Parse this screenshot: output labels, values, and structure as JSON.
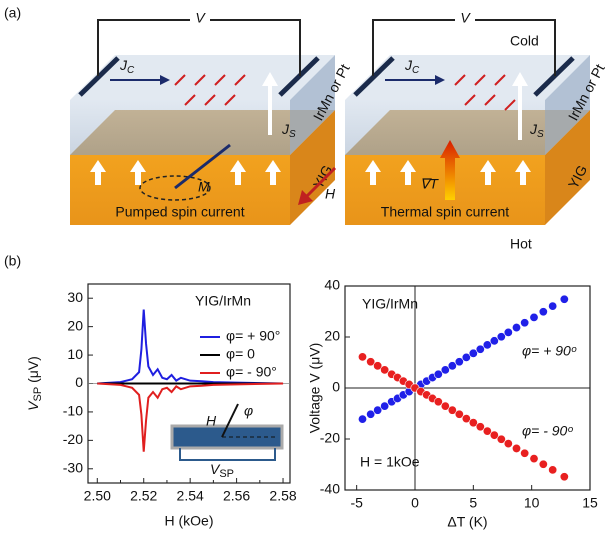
{
  "panel_a": {
    "label": "(a)",
    "left": {
      "voltage": "V",
      "jc_main": "J",
      "jc_sub": "C",
      "js_main": "J",
      "js_sub": "S",
      "magnetization": "M",
      "top_layer": "IrMn or Pt",
      "bottom_layer": "YIG",
      "caption": "Pumped spin current"
    },
    "field": "H",
    "right": {
      "voltage": "V",
      "jc_main": "J",
      "jc_sub": "C",
      "js_main": "J",
      "js_sub": "S",
      "gradient": "∇T",
      "top_layer": "IrMn or Pt",
      "bottom_layer": "YIG",
      "caption": "Thermal spin current",
      "cold": "Cold",
      "hot": "Hot"
    }
  },
  "panel_b": {
    "label": "(b)"
  },
  "chart_data": [
    {
      "type": "line",
      "annotation": "YIG/IrMn",
      "y_label": {
        "main": "V",
        "sub": "SP",
        "unit": " (μV)"
      },
      "x_label": "H (kOe)",
      "inset": {
        "field": "H",
        "angle": "φ",
        "voltage_main": "V",
        "voltage_sub": "SP"
      },
      "x": [
        2.5,
        2.51,
        2.515,
        2.518,
        2.519,
        2.52,
        2.521,
        2.522,
        2.524,
        2.526,
        2.528,
        2.53,
        2.532,
        2.534,
        2.536,
        2.54,
        2.545,
        2.55,
        2.56,
        2.58
      ],
      "series": [
        {
          "name": "φ= + 90°",
          "color": "#1f1fe0",
          "values": [
            0,
            0.5,
            1.5,
            4,
            12,
            26,
            14,
            6,
            3,
            5,
            2,
            1.5,
            3,
            1,
            2,
            1,
            0.8,
            0.5,
            0.3,
            0
          ]
        },
        {
          "name": "φ= 0",
          "color": "#000000",
          "values": [
            0,
            0,
            0,
            0,
            0,
            0,
            0,
            0,
            0,
            0,
            0,
            0,
            0,
            0,
            0,
            0,
            0,
            0,
            0,
            0
          ]
        },
        {
          "name": "φ= - 90°",
          "color": "#e01f1f",
          "values": [
            0,
            -0.5,
            -1.5,
            -4,
            -11,
            -24,
            -13,
            -5,
            -3,
            -5,
            -2,
            -1.5,
            -3,
            -1,
            -2,
            -1,
            -0.8,
            -0.5,
            -0.3,
            0
          ]
        }
      ],
      "xlim": [
        2.496,
        2.583
      ],
      "xticks": [
        {
          "value": 2.5,
          "label": "2.50"
        },
        2.52,
        2.54,
        2.56,
        2.58
      ],
      "xminorticks": [
        2.51,
        2.53,
        2.55,
        2.57
      ],
      "ylim": [
        -35,
        35
      ],
      "yticks": [
        -30,
        -20,
        -10,
        0,
        10,
        20,
        30
      ]
    },
    {
      "type": "scatter",
      "annotation": "YIG/IrMn",
      "field_note": "H = 1kOe",
      "y_label": "Voltage V (μV)",
      "x_label": "ΔT (K)",
      "x": [
        -4.5,
        -3.8,
        -3.2,
        -2.6,
        -2.0,
        -1.5,
        -1.0,
        -0.5,
        0,
        0.5,
        1.0,
        1.5,
        2.0,
        2.6,
        3.2,
        3.8,
        4.4,
        5.0,
        5.6,
        6.2,
        6.8,
        7.4,
        8.0,
        8.7,
        9.4,
        10.2,
        11.0,
        11.8,
        12.8
      ],
      "series": [
        {
          "name": "φ= + 90ᵒ",
          "color": "#2020e8",
          "values": [
            -12.2,
            -10.3,
            -8.7,
            -7.1,
            -5.4,
            -4.1,
            -2.7,
            -1.4,
            0,
            1.4,
            2.7,
            4.1,
            5.4,
            7.1,
            8.7,
            10.3,
            12.0,
            13.6,
            15.2,
            16.9,
            18.5,
            20.1,
            21.8,
            23.7,
            25.6,
            27.7,
            29.9,
            32.1,
            34.8
          ]
        },
        {
          "name": "φ= - 90ᵒ",
          "color": "#e82020",
          "values": [
            12.2,
            10.3,
            8.7,
            7.1,
            5.4,
            4.1,
            2.7,
            1.4,
            0,
            -1.4,
            -2.7,
            -4.1,
            -5.4,
            -7.1,
            -8.7,
            -10.3,
            -12.0,
            -13.6,
            -15.2,
            -16.9,
            -18.5,
            -20.1,
            -21.8,
            -23.7,
            -25.6,
            -27.7,
            -29.9,
            -32.1,
            -34.8
          ]
        }
      ],
      "xlim": [
        -6,
        15
      ],
      "xticks": [
        -5,
        0,
        5,
        10,
        15
      ],
      "ylim": [
        -40,
        40
      ],
      "yticks": [
        -40,
        -20,
        0,
        20,
        40
      ]
    }
  ]
}
